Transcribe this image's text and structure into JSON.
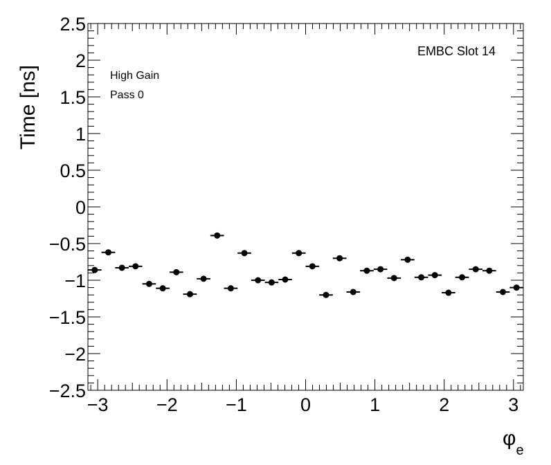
{
  "chart_data": {
    "type": "scatter",
    "title": "",
    "xlabel": "φ",
    "xlabel_sub": "e",
    "ylabel": "Time [ns]",
    "xlim": [
      -3.1416,
      3.1416
    ],
    "ylim": [
      -2.5,
      2.5
    ],
    "grid": false,
    "xtick_values": [
      -3,
      -2,
      -1,
      0,
      1,
      2,
      3
    ],
    "xtick_labels": [
      "−3",
      "−2",
      "−1",
      "0",
      "1",
      "2",
      "3"
    ],
    "ytick_values": [
      2.5,
      2,
      1.5,
      1,
      0.5,
      0,
      -0.5,
      -1,
      -1.5,
      -2,
      -2.5
    ],
    "ytick_labels": [
      "2.5",
      "2",
      "1.5",
      "1",
      "0.5",
      "0",
      "−0.5",
      "−1",
      "−1.5",
      "−2",
      "−2.5"
    ],
    "annotations": {
      "gain": "High Gain",
      "pass": "Pass 0",
      "slot": "EMBC Slot 14"
    },
    "bin_half_width": 0.0982,
    "series": [
      {
        "x": [
          -3.0434,
          -2.8471,
          -2.6507,
          -2.4544,
          -2.258,
          -2.0617,
          -1.8653,
          -1.669,
          -1.4726,
          -1.2763,
          -1.0799,
          -0.8836,
          -0.6872,
          -0.4909,
          -0.2945,
          -0.0982,
          0.0982,
          0.2945,
          0.4909,
          0.6872,
          0.8836,
          1.0799,
          1.2763,
          1.4726,
          1.669,
          1.8653,
          2.0617,
          2.258,
          2.4544,
          2.6507,
          2.8471,
          3.0434
        ],
        "y": [
          -0.86,
          -0.62,
          -0.83,
          -0.81,
          -1.05,
          -1.11,
          -0.89,
          -1.19,
          -0.98,
          -0.39,
          -1.11,
          -0.63,
          -1.0,
          -1.03,
          -0.99,
          -0.63,
          -0.81,
          -1.2,
          -0.7,
          -1.16,
          -0.87,
          -0.85,
          -0.97,
          -0.72,
          -0.96,
          -0.93,
          -1.17,
          -0.96,
          -0.85,
          -0.87,
          -1.16,
          -1.1
        ]
      }
    ]
  }
}
